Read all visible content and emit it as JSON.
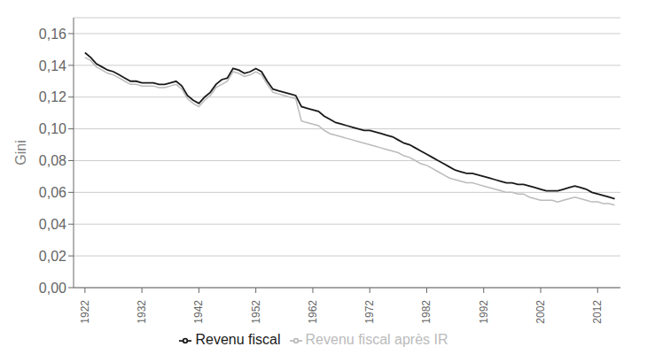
{
  "chart_data": {
    "type": "line",
    "ylabel": "Gini",
    "x": [
      1922,
      1923,
      1924,
      1925,
      1926,
      1927,
      1928,
      1929,
      1930,
      1931,
      1932,
      1933,
      1934,
      1935,
      1936,
      1937,
      1938,
      1939,
      1940,
      1941,
      1942,
      1943,
      1944,
      1945,
      1946,
      1947,
      1948,
      1949,
      1950,
      1951,
      1952,
      1953,
      1954,
      1955,
      1956,
      1957,
      1958,
      1959,
      1960,
      1961,
      1962,
      1963,
      1964,
      1965,
      1966,
      1967,
      1968,
      1969,
      1970,
      1971,
      1972,
      1973,
      1974,
      1975,
      1976,
      1977,
      1978,
      1979,
      1980,
      1981,
      1982,
      1983,
      1984,
      1985,
      1986,
      1987,
      1988,
      1989,
      1990,
      1991,
      1992,
      1993,
      1994,
      1995,
      1996,
      1997,
      1998,
      1999,
      2000,
      2001,
      2002,
      2003,
      2004,
      2005,
      2006,
      2007,
      2008,
      2009,
      2010,
      2011,
      2012,
      2013,
      2014,
      2015
    ],
    "series": [
      {
        "name": "Revenu fiscal",
        "color": "#1a1a1a",
        "values": [
          0.148,
          0.145,
          0.141,
          0.139,
          0.137,
          0.136,
          0.134,
          0.132,
          0.13,
          0.13,
          0.129,
          0.129,
          0.129,
          0.128,
          0.128,
          0.129,
          0.13,
          0.127,
          0.121,
          0.118,
          0.116,
          0.12,
          0.123,
          0.128,
          0.131,
          0.132,
          0.138,
          0.137,
          0.135,
          0.136,
          0.138,
          0.136,
          0.13,
          0.125,
          0.124,
          0.123,
          0.122,
          0.121,
          0.114,
          0.113,
          0.112,
          0.111,
          0.108,
          0.106,
          0.104,
          0.103,
          0.102,
          0.101,
          0.1,
          0.099,
          0.099,
          0.098,
          0.097,
          0.096,
          0.095,
          0.093,
          0.091,
          0.09,
          0.088,
          0.086,
          0.084,
          0.082,
          0.08,
          0.078,
          0.076,
          0.074,
          0.073,
          0.072,
          0.072,
          0.071,
          0.07,
          0.069,
          0.068,
          0.067,
          0.066,
          0.066,
          0.065,
          0.065,
          0.064,
          0.063,
          0.062,
          0.061,
          0.061,
          0.061,
          0.062,
          0.063,
          0.064,
          0.063,
          0.062,
          0.06,
          0.059,
          0.058,
          0.057,
          0.056
        ]
      },
      {
        "name": "Revenu fiscal après IR",
        "color": "#bbbbbb",
        "values": [
          0.145,
          0.143,
          0.139,
          0.137,
          0.135,
          0.134,
          0.132,
          0.13,
          0.128,
          0.128,
          0.127,
          0.127,
          0.127,
          0.126,
          0.126,
          0.127,
          0.128,
          0.125,
          0.119,
          0.116,
          0.114,
          0.118,
          0.121,
          0.126,
          0.128,
          0.13,
          0.136,
          0.135,
          0.133,
          0.134,
          0.136,
          0.134,
          0.128,
          0.123,
          0.122,
          0.121,
          0.12,
          0.119,
          0.105,
          0.104,
          0.103,
          0.102,
          0.099,
          0.097,
          0.096,
          0.095,
          0.094,
          0.093,
          0.092,
          0.091,
          0.09,
          0.089,
          0.088,
          0.087,
          0.086,
          0.085,
          0.083,
          0.082,
          0.08,
          0.078,
          0.077,
          0.075,
          0.073,
          0.071,
          0.069,
          0.068,
          0.067,
          0.066,
          0.066,
          0.065,
          0.064,
          0.063,
          0.062,
          0.061,
          0.06,
          0.06,
          0.059,
          0.059,
          0.057,
          0.056,
          0.055,
          0.055,
          0.055,
          0.054,
          0.055,
          0.056,
          0.057,
          0.056,
          0.055,
          0.054,
          0.054,
          0.053,
          0.053,
          0.052
        ]
      }
    ],
    "xlim": [
      1920,
      2016
    ],
    "xticks": [
      1922,
      1932,
      1942,
      1952,
      1962,
      1972,
      1982,
      1992,
      2002,
      2012
    ],
    "ylim": [
      0.0,
      0.17
    ],
    "yticks": [
      {
        "value": 0.0,
        "label": "0,00"
      },
      {
        "value": 0.02,
        "label": "0,02"
      },
      {
        "value": 0.04,
        "label": "0,04"
      },
      {
        "value": 0.06,
        "label": "0,06"
      },
      {
        "value": 0.08,
        "label": "0,08"
      },
      {
        "value": 0.1,
        "label": "0,10"
      },
      {
        "value": 0.12,
        "label": "0,12"
      },
      {
        "value": 0.14,
        "label": "0,14"
      },
      {
        "value": 0.16,
        "label": "0,16"
      }
    ],
    "grid": true,
    "legend": "bottom"
  }
}
